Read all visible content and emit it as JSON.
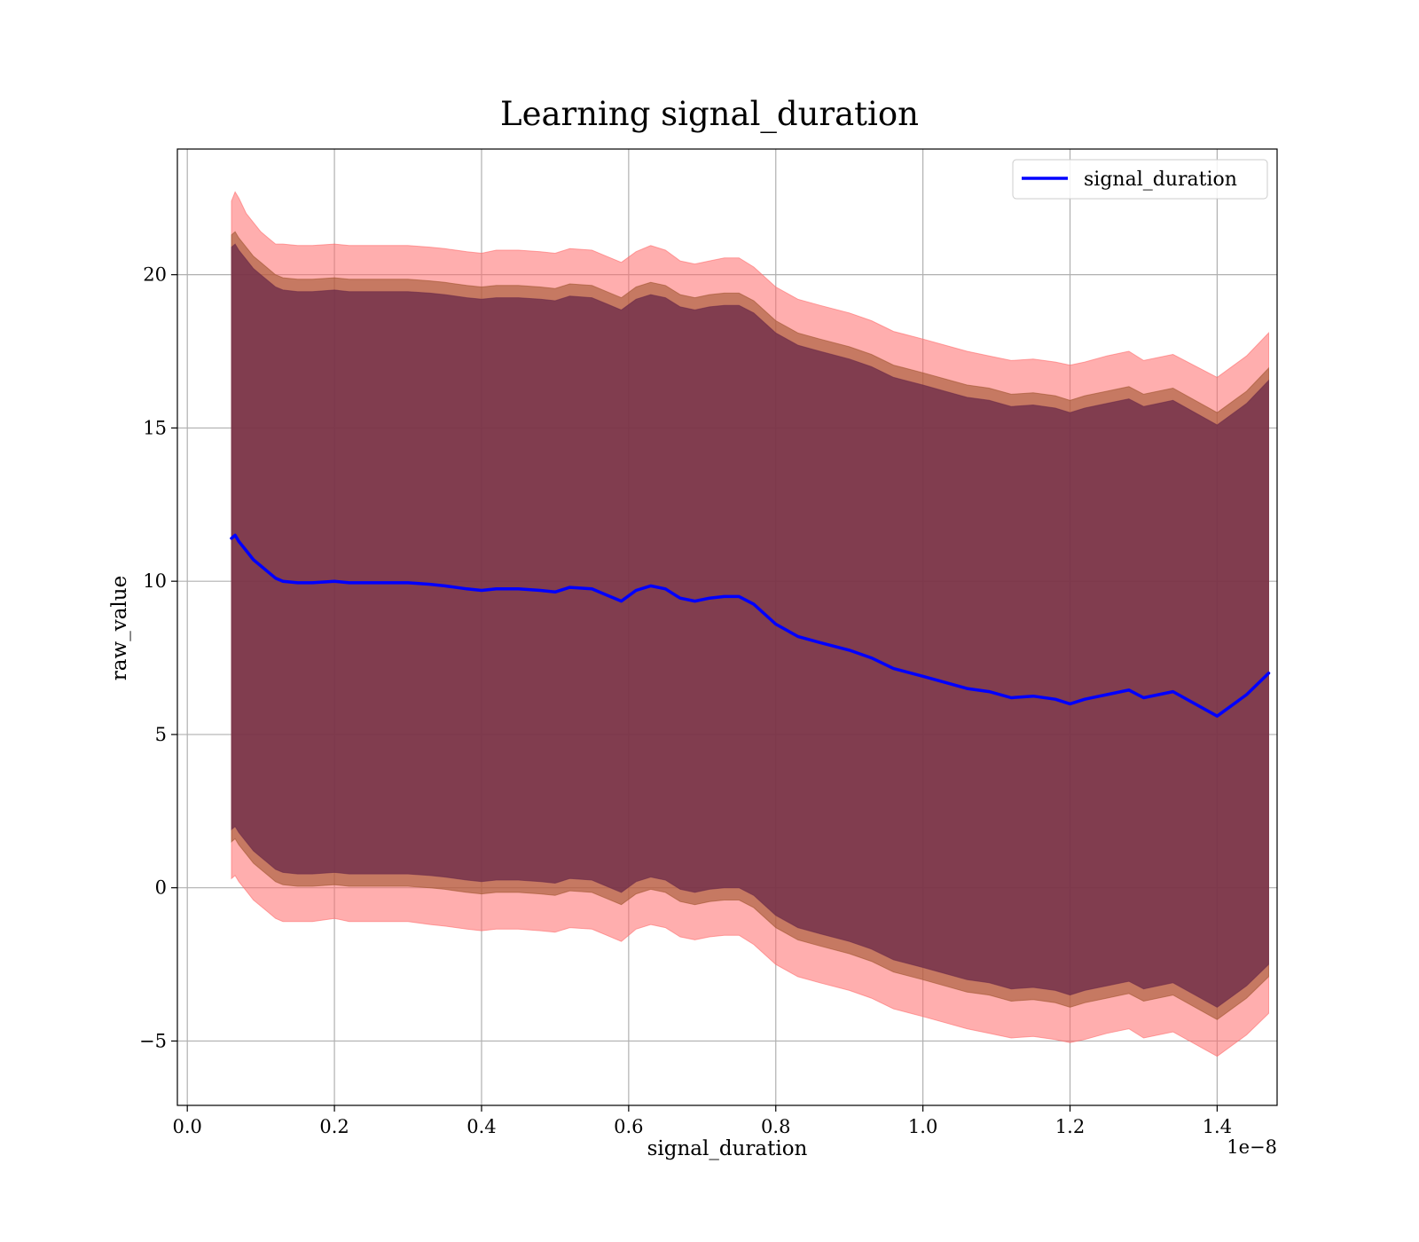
{
  "chart_data": {
    "type": "line",
    "title": "Learning signal_duration",
    "xlabel": "signal_duration",
    "ylabel": "raw_value",
    "x_offset_label": "1e−8",
    "xlim": [
      -0.0135,
      1.4815
    ],
    "ylim": [
      -7.1,
      24.1
    ],
    "x_ticks": [
      0.0,
      0.2,
      0.4,
      0.6,
      0.8,
      1.0,
      1.2,
      1.4
    ],
    "x_tick_labels": [
      "0.0",
      "0.2",
      "0.4",
      "0.6",
      "0.8",
      "1.0",
      "1.2",
      "1.4"
    ],
    "y_ticks": [
      -5,
      0,
      5,
      10,
      15,
      20
    ],
    "y_tick_labels": [
      "−5",
      "0",
      "5",
      "10",
      "15",
      "20"
    ],
    "grid": true,
    "legend": {
      "placement": "top-right",
      "entries": [
        "signal_duration"
      ]
    },
    "colors": {
      "mean_line": "#0000ff",
      "band_outer": "#ff6b6b",
      "band_middle": "#a0552e",
      "band_inner": "#6a2a4a"
    },
    "x": [
      0.06,
      0.065,
      0.07,
      0.08,
      0.09,
      0.1,
      0.11,
      0.12,
      0.13,
      0.15,
      0.17,
      0.2,
      0.22,
      0.25,
      0.28,
      0.3,
      0.33,
      0.35,
      0.38,
      0.4,
      0.42,
      0.45,
      0.48,
      0.5,
      0.52,
      0.55,
      0.57,
      0.59,
      0.61,
      0.63,
      0.65,
      0.67,
      0.69,
      0.71,
      0.73,
      0.75,
      0.77,
      0.8,
      0.83,
      0.86,
      0.9,
      0.93,
      0.96,
      1.0,
      1.03,
      1.06,
      1.09,
      1.12,
      1.15,
      1.18,
      1.2,
      1.22,
      1.25,
      1.28,
      1.3,
      1.34,
      1.4,
      1.44,
      1.47
    ],
    "series": [
      {
        "name": "signal_duration",
        "values": [
          11.4,
          11.5,
          11.3,
          11.0,
          10.7,
          10.5,
          10.3,
          10.1,
          10.0,
          9.95,
          9.95,
          10.0,
          9.95,
          9.95,
          9.95,
          9.95,
          9.9,
          9.85,
          9.75,
          9.7,
          9.75,
          9.75,
          9.7,
          9.65,
          9.8,
          9.75,
          9.55,
          9.35,
          9.7,
          9.85,
          9.75,
          9.45,
          9.35,
          9.45,
          9.5,
          9.5,
          9.25,
          8.6,
          8.2,
          8.0,
          7.75,
          7.5,
          7.15,
          6.9,
          6.7,
          6.5,
          6.4,
          6.2,
          6.25,
          6.15,
          6.0,
          6.15,
          6.3,
          6.45,
          6.2,
          6.4,
          5.6,
          6.3,
          7.0
        ]
      }
    ],
    "bands": [
      {
        "role": "outer",
        "upper": [
          22.4,
          22.7,
          22.5,
          22.0,
          21.7,
          21.4,
          21.2,
          21.0,
          21.0,
          20.95,
          20.95,
          21.0,
          20.95,
          20.95,
          20.95,
          20.95,
          20.9,
          20.85,
          20.75,
          20.7,
          20.8,
          20.8,
          20.75,
          20.7,
          20.85,
          20.8,
          20.6,
          20.4,
          20.75,
          20.95,
          20.8,
          20.45,
          20.35,
          20.45,
          20.55,
          20.55,
          20.25,
          19.6,
          19.2,
          19.0,
          18.75,
          18.5,
          18.15,
          17.9,
          17.7,
          17.5,
          17.35,
          17.2,
          17.25,
          17.15,
          17.05,
          17.15,
          17.35,
          17.5,
          17.2,
          17.4,
          16.65,
          17.35,
          18.1
        ],
        "lower": [
          0.3,
          0.4,
          0.2,
          -0.1,
          -0.4,
          -0.6,
          -0.8,
          -1.0,
          -1.1,
          -1.1,
          -1.1,
          -1.0,
          -1.1,
          -1.1,
          -1.1,
          -1.1,
          -1.2,
          -1.25,
          -1.35,
          -1.4,
          -1.35,
          -1.35,
          -1.4,
          -1.45,
          -1.3,
          -1.35,
          -1.55,
          -1.75,
          -1.35,
          -1.2,
          -1.3,
          -1.6,
          -1.7,
          -1.6,
          -1.55,
          -1.55,
          -1.85,
          -2.5,
          -2.9,
          -3.1,
          -3.35,
          -3.6,
          -3.95,
          -4.2,
          -4.4,
          -4.6,
          -4.75,
          -4.9,
          -4.85,
          -4.95,
          -5.05,
          -4.95,
          -4.75,
          -4.6,
          -4.9,
          -4.7,
          -5.5,
          -4.8,
          -4.1
        ]
      },
      {
        "role": "middle",
        "upper": [
          21.3,
          21.4,
          21.2,
          20.9,
          20.6,
          20.4,
          20.2,
          20.0,
          19.9,
          19.85,
          19.85,
          19.9,
          19.85,
          19.85,
          19.85,
          19.85,
          19.8,
          19.75,
          19.65,
          19.6,
          19.65,
          19.65,
          19.6,
          19.55,
          19.7,
          19.65,
          19.45,
          19.25,
          19.6,
          19.75,
          19.65,
          19.35,
          19.25,
          19.35,
          19.4,
          19.4,
          19.15,
          18.5,
          18.1,
          17.9,
          17.65,
          17.4,
          17.05,
          16.8,
          16.6,
          16.4,
          16.3,
          16.1,
          16.15,
          16.05,
          15.9,
          16.05,
          16.2,
          16.35,
          16.1,
          16.3,
          15.5,
          16.2,
          16.95
        ],
        "lower": [
          1.5,
          1.6,
          1.4,
          1.1,
          0.8,
          0.6,
          0.4,
          0.2,
          0.1,
          0.05,
          0.05,
          0.1,
          0.05,
          0.05,
          0.05,
          0.05,
          0.0,
          -0.05,
          -0.15,
          -0.2,
          -0.15,
          -0.15,
          -0.2,
          -0.25,
          -0.1,
          -0.15,
          -0.35,
          -0.55,
          -0.2,
          -0.05,
          -0.15,
          -0.45,
          -0.55,
          -0.45,
          -0.4,
          -0.4,
          -0.65,
          -1.3,
          -1.7,
          -1.9,
          -2.15,
          -2.4,
          -2.75,
          -3.0,
          -3.2,
          -3.4,
          -3.5,
          -3.7,
          -3.65,
          -3.75,
          -3.9,
          -3.75,
          -3.6,
          -3.45,
          -3.7,
          -3.5,
          -4.3,
          -3.6,
          -2.9
        ]
      },
      {
        "role": "inner",
        "upper": [
          20.9,
          21.0,
          20.8,
          20.5,
          20.2,
          20.0,
          19.8,
          19.6,
          19.5,
          19.45,
          19.45,
          19.5,
          19.45,
          19.45,
          19.45,
          19.45,
          19.4,
          19.35,
          19.25,
          19.2,
          19.25,
          19.25,
          19.2,
          19.15,
          19.3,
          19.25,
          19.05,
          18.85,
          19.2,
          19.35,
          19.25,
          18.95,
          18.85,
          18.95,
          19.0,
          19.0,
          18.75,
          18.1,
          17.7,
          17.5,
          17.25,
          17.0,
          16.65,
          16.4,
          16.2,
          16.0,
          15.9,
          15.7,
          15.75,
          15.65,
          15.5,
          15.65,
          15.8,
          15.95,
          15.7,
          15.9,
          15.1,
          15.8,
          16.55
        ],
        "lower": [
          1.9,
          2.0,
          1.8,
          1.5,
          1.2,
          1.0,
          0.8,
          0.6,
          0.5,
          0.45,
          0.45,
          0.5,
          0.45,
          0.45,
          0.45,
          0.45,
          0.4,
          0.35,
          0.25,
          0.2,
          0.25,
          0.25,
          0.2,
          0.15,
          0.3,
          0.25,
          0.05,
          -0.15,
          0.2,
          0.35,
          0.25,
          -0.05,
          -0.15,
          -0.05,
          0.0,
          0.0,
          -0.25,
          -0.9,
          -1.3,
          -1.5,
          -1.75,
          -2.0,
          -2.35,
          -2.6,
          -2.8,
          -3.0,
          -3.1,
          -3.3,
          -3.25,
          -3.35,
          -3.5,
          -3.35,
          -3.2,
          -3.05,
          -3.3,
          -3.1,
          -3.9,
          -3.2,
          -2.5
        ]
      }
    ]
  }
}
